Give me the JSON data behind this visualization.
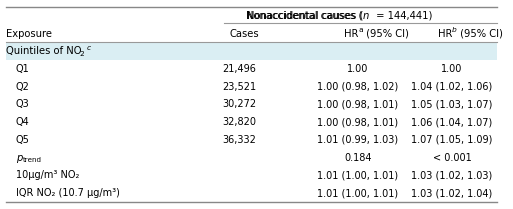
{
  "title_parts": [
    "Nonaccidental causes (",
    "n",
    " = 144,441)"
  ],
  "col_headers_left": [
    "Exposure",
    "Cases"
  ],
  "col_headers_right": [
    "HR",
    "a",
    " (95% CI)",
    "HR",
    "b",
    " (95% CI)"
  ],
  "section_header": "Quintiles of NO",
  "section_bg": "#daeef3",
  "rows": [
    [
      "Q1",
      "21,496",
      "1.00",
      "1.00"
    ],
    [
      "Q2",
      "23,521",
      "1.00 (0.98, 1.02)",
      "1.04 (1.02, 1.06)"
    ],
    [
      "Q3",
      "30,272",
      "1.00 (0.98, 1.01)",
      "1.05 (1.03, 1.07)"
    ],
    [
      "Q4",
      "32,820",
      "1.00 (0.98, 1.01)",
      "1.06 (1.04, 1.07)"
    ],
    [
      "Q5",
      "36,332",
      "1.01 (0.99, 1.03)",
      "1.07 (1.05, 1.09)"
    ],
    [
      "p_trend",
      "",
      "0.184",
      "< 0.001"
    ],
    [
      "10μg/m³ NO₂",
      "",
      "1.01 (1.00, 1.01)",
      "1.03 (1.02, 1.03)"
    ],
    [
      "IQR NO₂ (10.7 μg/m³)",
      "",
      "1.01 (1.00, 1.01)",
      "1.03 (1.02, 1.04)"
    ]
  ],
  "fig_bg": "#ffffff",
  "border_color": "#888888",
  "line_color": "#999999",
  "font_size": 7.0,
  "header_font_size": 7.2,
  "font_family": "DejaVu Sans"
}
